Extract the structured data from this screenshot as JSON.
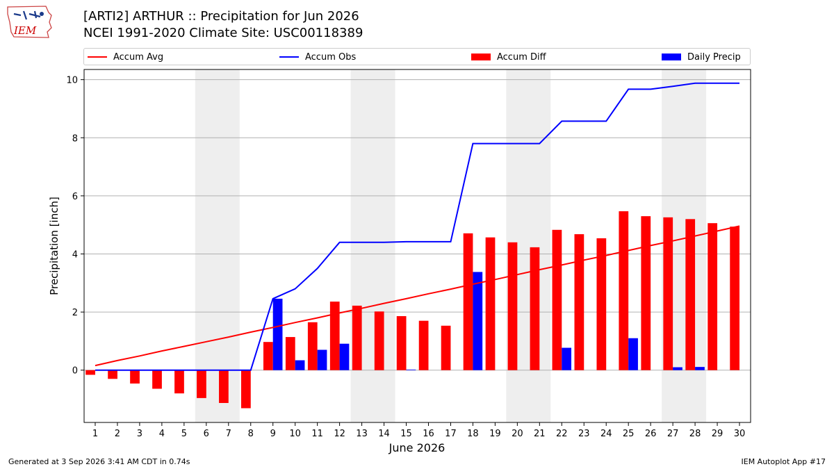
{
  "header": {
    "logo_text": "IEM",
    "title_line1": "[ARTI2] ARTHUR :: Precipitation for Jun 2026",
    "title_line2": "NCEI 1991-2020 Climate Site: USC00118389"
  },
  "footer": {
    "generated": "Generated at 3 Sep 2026 3:41 AM CDT in 0.74s",
    "app": "IEM Autoplot App #17"
  },
  "colors": {
    "accum_avg": "#ff0000",
    "accum_obs": "#0000ff",
    "accum_diff": "#ff0000",
    "daily_precip": "#0000ff",
    "weekend_shade": "#eeeeee",
    "grid": "#b0b0b0"
  },
  "chart_data": {
    "type": "bar",
    "xlabel": "June 2026",
    "ylabel": "Precipitation [inch]",
    "ylim": [
      -1.8,
      10.35
    ],
    "yticks": [
      0,
      2,
      4,
      6,
      8,
      10
    ],
    "grid": "horizontal",
    "legend_position": "top",
    "x": [
      1,
      2,
      3,
      4,
      5,
      6,
      7,
      8,
      9,
      10,
      11,
      12,
      13,
      14,
      15,
      16,
      17,
      18,
      19,
      20,
      21,
      22,
      23,
      24,
      25,
      26,
      27,
      28,
      29,
      30
    ],
    "weekend_shading": [
      [
        6,
        7
      ],
      [
        13,
        14
      ],
      [
        20,
        21
      ],
      [
        27,
        28
      ]
    ],
    "series": [
      {
        "name": "Accum Avg",
        "kind": "line",
        "values": [
          0.16,
          0.33,
          0.49,
          0.66,
          0.82,
          0.98,
          1.14,
          1.31,
          1.47,
          1.64,
          1.8,
          1.97,
          2.13,
          2.3,
          2.46,
          2.63,
          2.79,
          2.96,
          3.12,
          3.29,
          3.46,
          3.62,
          3.79,
          3.95,
          4.12,
          4.29,
          4.45,
          4.62,
          4.79,
          4.96
        ]
      },
      {
        "name": "Accum Obs",
        "kind": "line",
        "values": [
          0,
          0,
          0,
          0,
          0,
          0,
          0,
          0,
          2.46,
          2.8,
          3.5,
          4.4,
          4.4,
          4.4,
          4.42,
          4.42,
          4.42,
          7.8,
          7.8,
          7.8,
          7.8,
          8.57,
          8.57,
          8.57,
          9.67,
          9.67,
          9.77,
          9.88,
          9.88,
          9.88
        ]
      },
      {
        "name": "Accum Diff",
        "kind": "bar",
        "values": [
          -0.16,
          -0.3,
          -0.46,
          -0.64,
          -0.8,
          -0.96,
          -1.13,
          -1.31,
          0.97,
          1.14,
          1.65,
          2.36,
          2.22,
          2.02,
          1.86,
          1.7,
          1.53,
          4.71,
          4.57,
          4.4,
          4.23,
          4.83,
          4.68,
          4.54,
          5.47,
          5.3,
          5.26,
          5.2,
          5.06,
          4.94
        ]
      },
      {
        "name": "Daily Precip",
        "kind": "bar",
        "values": [
          0,
          0,
          0,
          0,
          0,
          0,
          0,
          0,
          2.46,
          0.34,
          0.7,
          0.91,
          0,
          0,
          0.02,
          0,
          0,
          3.38,
          0,
          0,
          0,
          0.77,
          0,
          0,
          1.1,
          0,
          0.1,
          0.11,
          0,
          0
        ]
      }
    ]
  }
}
